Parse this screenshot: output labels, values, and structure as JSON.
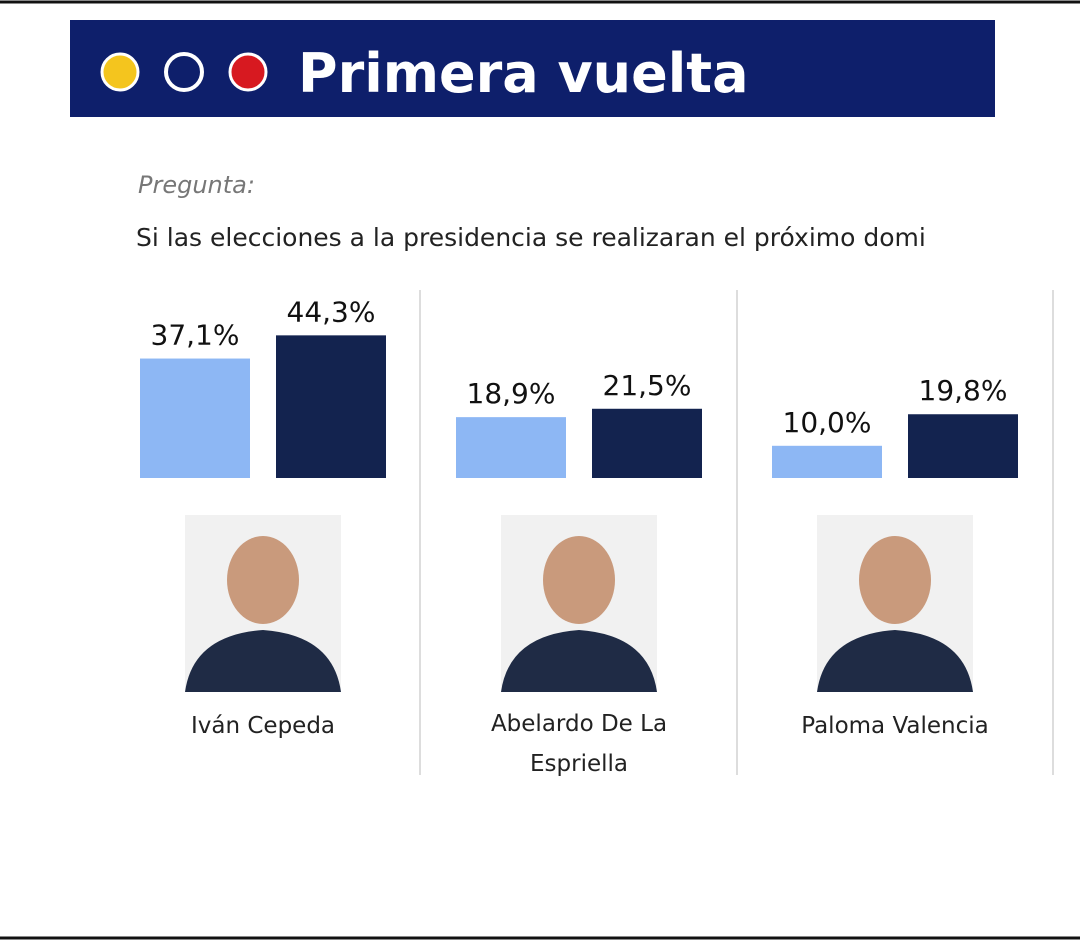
{
  "chart_data": {
    "type": "bar",
    "title": "Primera vuelta",
    "subtitle": "Pregunta:",
    "question": "Si las elecciones a la presidencia se realizaran el próximo domi",
    "categories": [
      "Iván Cepeda",
      "Abelardo De La Espriella",
      "Paloma Valencia"
    ],
    "series": [
      {
        "color": "#8db7f4",
        "values": [
          37.1,
          18.9,
          10.0
        ],
        "value_labels": [
          "37,1%",
          "18,9%",
          "10,0%"
        ]
      },
      {
        "color": "#13234f",
        "values": [
          44.3,
          21.5,
          19.8
        ],
        "value_labels": [
          "44,3%",
          "21,5%",
          "19,8%"
        ]
      }
    ]
  }
}
